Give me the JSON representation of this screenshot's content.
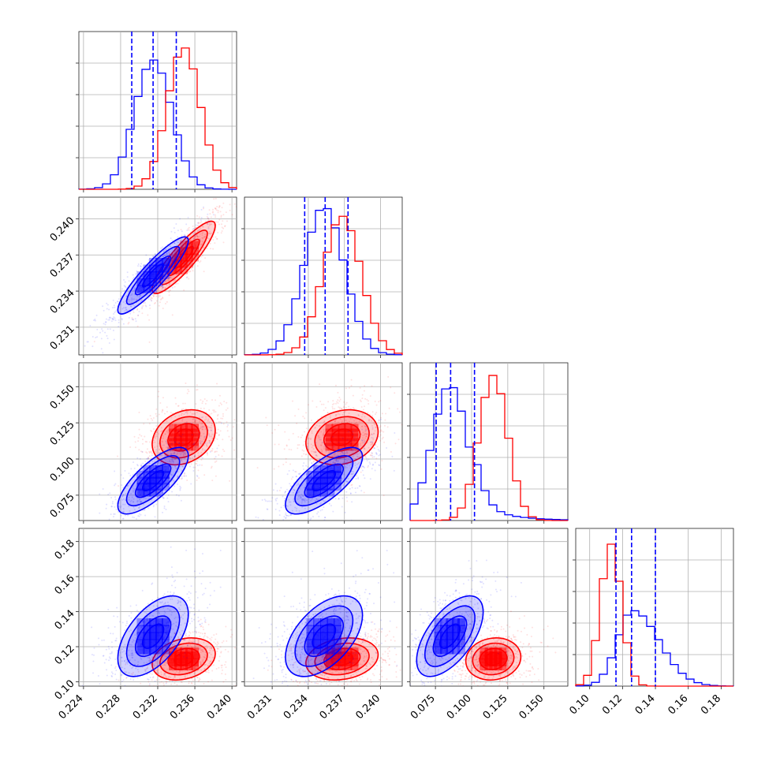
{
  "chart_data": {
    "type": "corner",
    "title": "",
    "n_params": 4,
    "colors": {
      "blue": "#0000ff",
      "red": "#ff0000"
    },
    "grid": true,
    "params": [
      {
        "xlim": [
          0.2235,
          0.2405
        ],
        "ticks": [
          0.224,
          0.228,
          0.232,
          0.236,
          0.24
        ],
        "tick_labels": [
          "0.224",
          "0.228",
          "0.232",
          "0.236",
          "0.240"
        ],
        "label": ""
      },
      {
        "xlim": [
          0.2287,
          0.2418
        ],
        "ticks": [
          0.231,
          0.234,
          0.237,
          0.24
        ],
        "tick_labels": [
          "0.231",
          "0.234",
          "0.237",
          "0.240"
        ],
        "label": ""
      },
      {
        "xlim": [
          0.0575,
          0.1665
        ],
        "ticks": [
          0.075,
          0.1,
          0.125,
          0.15
        ],
        "tick_labels": [
          "0.075",
          "0.100",
          "0.125",
          "0.150"
        ],
        "label": ""
      },
      {
        "xlim": [
          0.0915,
          0.1875
        ],
        "ticks": [
          0.1,
          0.12,
          0.14,
          0.16,
          0.18
        ],
        "tick_labels": [
          "0.10",
          "0.12",
          "0.14",
          "0.16",
          "0.18"
        ],
        "label": ""
      }
    ],
    "row_ylims": [
      null,
      [
        0.2287,
        0.2418
      ],
      [
        0.0575,
        0.1665
      ],
      [
        0.0975,
        0.1875
      ]
    ],
    "row_yticks": [
      null,
      {
        "ticks": [
          0.231,
          0.234,
          0.237,
          0.24
        ],
        "labels": [
          "0.231",
          "0.234",
          "0.237",
          "0.240"
        ]
      },
      {
        "ticks": [
          0.075,
          0.1,
          0.125,
          0.15
        ],
        "labels": [
          "0.075",
          "0.100",
          "0.125",
          "0.150"
        ]
      },
      {
        "ticks": [
          0.1,
          0.12,
          0.14,
          0.16,
          0.18
        ],
        "labels": [
          "0.10",
          "0.12",
          "0.14",
          "0.16",
          "0.18"
        ]
      }
    ],
    "series": [
      {
        "color": "#0000ff",
        "mean": [
          0.2315,
          0.2353,
          0.085,
          0.126
        ],
        "sd": [
          0.0019,
          0.0016,
          0.0115,
          0.0115
        ],
        "corr": [
          [
            1.0,
            0.9,
            0.75,
            0.55
          ],
          [
            0.9,
            1.0,
            0.72,
            0.52
          ],
          [
            0.75,
            0.72,
            1.0,
            0.6
          ],
          [
            0.55,
            0.52,
            0.6,
            1.0
          ]
        ],
        "quantiles_diag": [
          [
            0.2292,
            0.2315,
            0.234
          ],
          [
            0.2337,
            0.2354,
            0.2373
          ],
          [
            0.0755,
            0.0855,
            0.102
          ],
          [
            0.116,
            0.1255,
            0.14
          ]
        ],
        "hist_peaks": [
          0.82,
          0.94,
          0.86,
          0.48
        ]
      },
      {
        "color": "#ff0000",
        "mean": [
          0.2348,
          0.2368,
          0.115,
          0.113
        ],
        "sd": [
          0.0017,
          0.0015,
          0.0095,
          0.006
        ],
        "corr": [
          [
            1.0,
            0.88,
            0.25,
            0.25
          ],
          [
            0.88,
            1.0,
            0.2,
            0.2
          ],
          [
            0.25,
            0.2,
            1.0,
            0.1
          ],
          [
            0.25,
            0.2,
            0.1,
            1.0
          ]
        ],
        "hist_peaks": [
          0.9,
          0.88,
          0.92,
          0.9
        ]
      }
    ]
  }
}
